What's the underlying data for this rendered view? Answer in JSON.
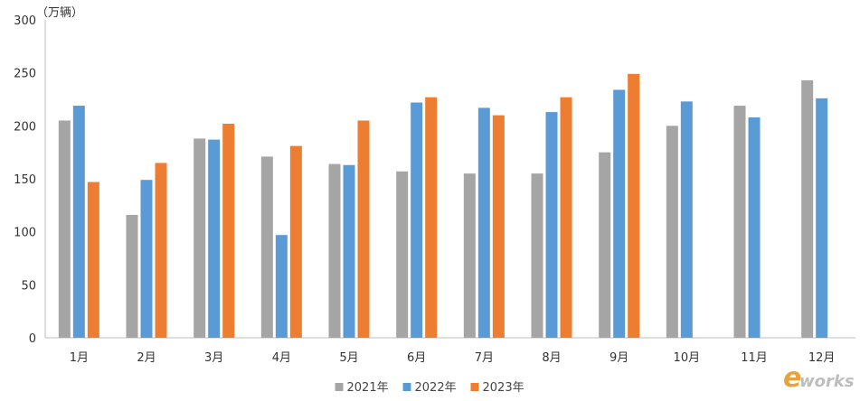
{
  "chart_data": {
    "type": "bar",
    "unit_label": "（万辆）",
    "categories": [
      "1月",
      "2月",
      "3月",
      "4月",
      "5月",
      "6月",
      "7月",
      "8月",
      "9月",
      "10月",
      "11月",
      "12月"
    ],
    "series": [
      {
        "name": "2021年",
        "color": "#a5a5a5",
        "values": [
          205,
          116,
          188,
          171,
          164,
          157,
          155,
          155,
          175,
          200,
          219,
          243
        ]
      },
      {
        "name": "2022年",
        "color": "#5b9bd5",
        "values": [
          219,
          149,
          187,
          97,
          163,
          222,
          217,
          213,
          234,
          223,
          208,
          226
        ]
      },
      {
        "name": "2023年",
        "color": "#ed7d31",
        "values": [
          147,
          165,
          202,
          181,
          205,
          227,
          210,
          227,
          249,
          null,
          null,
          null
        ]
      }
    ],
    "ylim": [
      0,
      300
    ],
    "yticks": [
      0,
      50,
      100,
      150,
      200,
      250,
      300
    ],
    "grid": false,
    "legend_position": "bottom-center"
  },
  "watermark": {
    "e": "e",
    "w": "works",
    "brand_color": "#e8a33d"
  }
}
